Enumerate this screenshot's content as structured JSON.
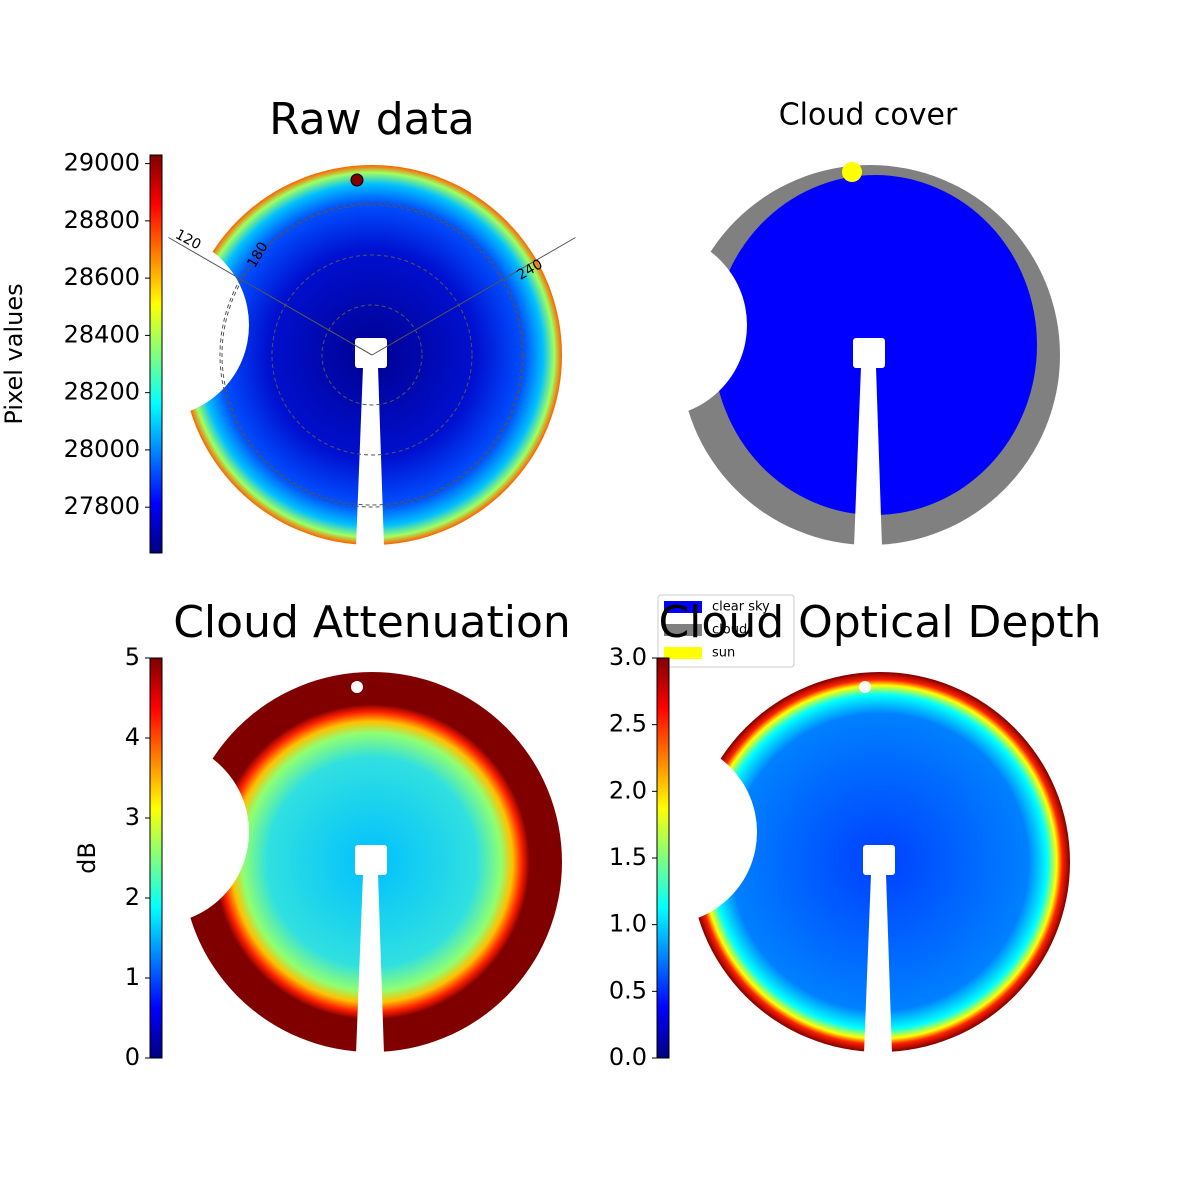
{
  "chart_data": [
    {
      "type": "image",
      "title": "Raw data",
      "colormap": "jet",
      "colorbar_label": "Pixel values",
      "ylim": [
        27640,
        29030
      ],
      "yticks": [
        27800,
        28000,
        28200,
        28400,
        28600,
        28800,
        29000
      ],
      "annotations": [
        "120",
        "180",
        "240"
      ]
    },
    {
      "type": "classes",
      "title": "Cloud cover",
      "legend": [
        {
          "name": "clear sky",
          "color": "#0000ff"
        },
        {
          "name": "cloud",
          "color": "#808080"
        },
        {
          "name": "sun",
          "color": "#ffff00"
        }
      ]
    },
    {
      "type": "image",
      "title": "Cloud Attenuation",
      "colormap": "jet",
      "colorbar_label": "dB",
      "ylim": [
        0,
        5
      ],
      "yticks": [
        0,
        1,
        2,
        3,
        4,
        5
      ]
    },
    {
      "type": "image",
      "title": "Cloud Optical Depth",
      "colormap": "jet",
      "ylim": [
        0,
        3
      ],
      "yticks": [
        {
          "value": 0,
          "label": "0.0"
        },
        0.5,
        {
          "value": 1,
          "label": "1.0"
        },
        1.5,
        {
          "value": 2,
          "label": "2.0"
        },
        2.5,
        {
          "value": 3,
          "label": "3.0"
        }
      ]
    }
  ]
}
